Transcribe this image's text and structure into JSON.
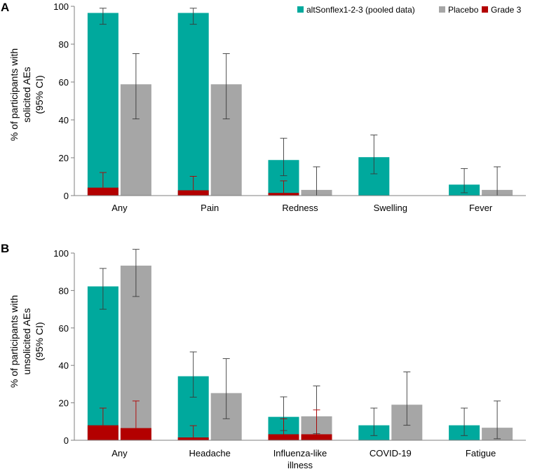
{
  "colors": {
    "alt": "#00a99d",
    "placebo": "#a6a6a6",
    "grade3": "#b30000",
    "axis": "#7f7f7f"
  },
  "legend": [
    {
      "key": "alt",
      "label": "altSonflex1-2-3 (pooled data)"
    },
    {
      "key": "placebo",
      "label": "Placebo"
    },
    {
      "key": "grade3",
      "label": "Grade 3"
    }
  ],
  "chart_data": [
    {
      "panel": "A",
      "type": "bar",
      "ylabel": [
        "% of participants with",
        "solicited AEs",
        "(95% CI)"
      ],
      "ylim": [
        0,
        100
      ],
      "yticks": [
        0,
        20,
        40,
        60,
        80,
        100
      ],
      "categories": [
        [
          "Any"
        ],
        [
          "Pain"
        ],
        [
          "Redness"
        ],
        [
          "Swelling"
        ],
        [
          "Fever"
        ]
      ],
      "series": [
        {
          "name": "altSonflex1-2-3 (pooled data)",
          "key": "alt",
          "values": [
            96.5,
            96.5,
            18.8,
            20.3,
            5.8
          ],
          "ci_low": [
            90.5,
            90.5,
            10.5,
            11.5,
            1.5
          ],
          "ci_high": [
            99,
            99,
            30.3,
            32,
            14.3
          ],
          "grade3": [
            4.2,
            2.8,
            1.4,
            null,
            null
          ],
          "grade3_ci_high": [
            12.2,
            10.2,
            7.8,
            null,
            null
          ]
        },
        {
          "name": "Placebo",
          "key": "placebo",
          "values": [
            58.8,
            58.8,
            3.0,
            null,
            3.0
          ],
          "ci_low": [
            40.5,
            40.5,
            0,
            null,
            0
          ],
          "ci_high": [
            75,
            75,
            15.2,
            null,
            15.2
          ],
          "grade3": [
            null,
            null,
            null,
            null,
            null
          ],
          "grade3_ci_high": [
            null,
            null,
            null,
            null,
            null
          ]
        }
      ]
    },
    {
      "panel": "B",
      "type": "bar",
      "ylabel": [
        "% of participants with",
        "unsolicited AEs",
        "(95% CI)"
      ],
      "ylim": [
        0,
        100
      ],
      "yticks": [
        0,
        20,
        40,
        60,
        80,
        100
      ],
      "categories": [
        [
          "Any"
        ],
        [
          "Headache"
        ],
        [
          "Influenza-like",
          "illness"
        ],
        [
          "COVID-19"
        ],
        [
          "Fatigue"
        ]
      ],
      "series": [
        {
          "name": "altSonflex1-2-3 (pooled data)",
          "key": "alt",
          "values": [
            82.2,
            34.2,
            12.5,
            8.0,
            8.0
          ],
          "ci_low": [
            70,
            23,
            5.2,
            2.5,
            2.5
          ],
          "ci_high": [
            91.8,
            47.2,
            23.2,
            17.2,
            17.2
          ],
          "grade3": [
            8.0,
            1.5,
            3.2,
            null,
            null
          ],
          "grade3_ci_high": [
            17.2,
            7.8,
            11.5,
            null,
            null
          ]
        },
        {
          "name": "Placebo",
          "key": "placebo",
          "values": [
            93.3,
            25.2,
            12.8,
            19.0,
            6.7
          ],
          "ci_low": [
            76.8,
            11.5,
            3.5,
            8.0,
            0.8
          ],
          "ci_high": [
            102,
            43.6,
            29,
            36.5,
            21
          ],
          "grade3": [
            6.5,
            null,
            3.2,
            null,
            null
          ],
          "grade3_ci_high": [
            21,
            null,
            16.2,
            null,
            null
          ]
        }
      ]
    }
  ]
}
